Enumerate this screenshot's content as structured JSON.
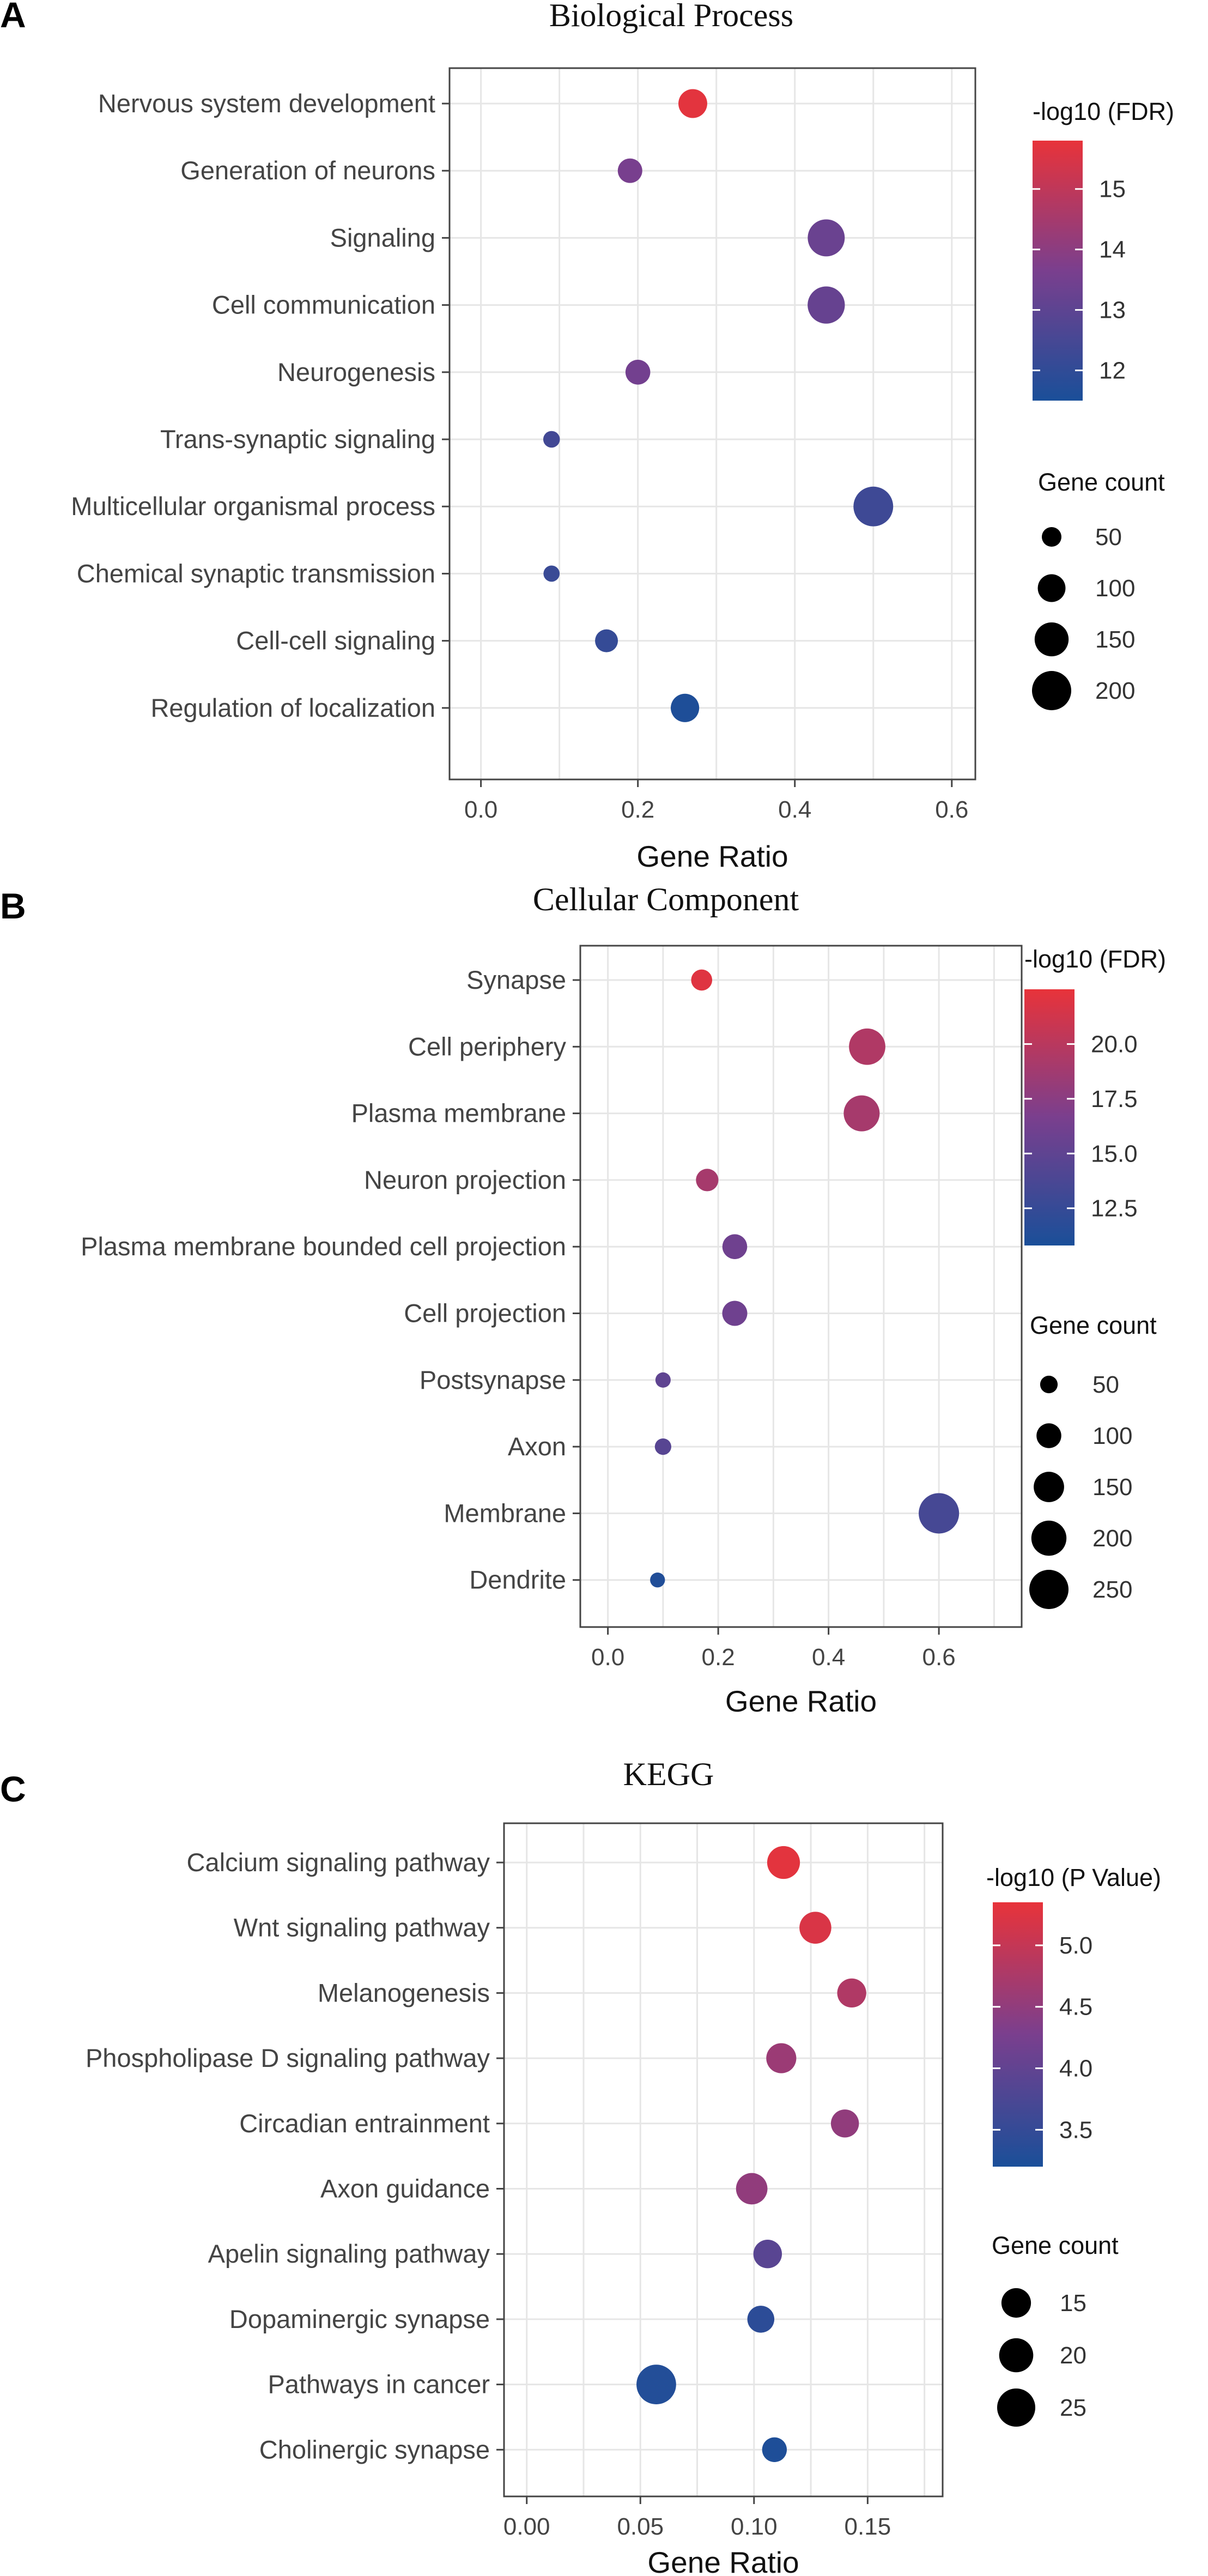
{
  "chart_data": [
    {
      "panel": "A",
      "type": "scatter",
      "title": "Biological Process",
      "xlabel": "Gene Ratio",
      "ylabel": "",
      "xlim": [
        -0.04,
        0.63
      ],
      "xticks": [
        0.0,
        0.2,
        0.4,
        0.6
      ],
      "xtick_labels": [
        "0.0",
        "0.2",
        "0.4",
        "0.6"
      ],
      "grid": true,
      "color_metric": "-log10 (FDR)",
      "color_range": [
        11.5,
        15.8
      ],
      "color_ticks": [
        12,
        13,
        14,
        15
      ],
      "color_tick_labels": [
        "12",
        "13",
        "14",
        "15"
      ],
      "size_metric": "Gene count",
      "size_legend": [
        50,
        100,
        150,
        200
      ],
      "size_legend_labels": [
        "50",
        "100",
        "150",
        "200"
      ],
      "points": [
        {
          "term": "Nervous system development",
          "x": 0.27,
          "color": 15.7,
          "size": 108
        },
        {
          "term": "Generation of neurons",
          "x": 0.19,
          "color": 13.6,
          "size": 78
        },
        {
          "term": "Signaling",
          "x": 0.44,
          "color": 13.3,
          "size": 178
        },
        {
          "term": "Cell communication",
          "x": 0.44,
          "color": 13.2,
          "size": 180
        },
        {
          "term": "Neurogenesis",
          "x": 0.2,
          "color": 13.5,
          "size": 80
        },
        {
          "term": "Trans-synaptic signaling",
          "x": 0.09,
          "color": 12.4,
          "size": 36
        },
        {
          "term": "Multicellular organismal process",
          "x": 0.5,
          "color": 12.3,
          "size": 205
        },
        {
          "term": "Chemical synaptic transmission",
          "x": 0.09,
          "color": 12.2,
          "size": 34
        },
        {
          "term": "Cell-cell signaling",
          "x": 0.16,
          "color": 12.1,
          "size": 68
        },
        {
          "term": "Regulation of localization",
          "x": 0.26,
          "color": 11.6,
          "size": 105
        }
      ]
    },
    {
      "panel": "B",
      "type": "scatter",
      "title": "Cellular Component",
      "xlabel": "Gene Ratio",
      "ylabel": "",
      "xlim": [
        -0.05,
        0.75
      ],
      "xticks": [
        0.0,
        0.2,
        0.4,
        0.6
      ],
      "xtick_labels": [
        "0.0",
        "0.2",
        "0.4",
        "0.6"
      ],
      "grid": true,
      "color_metric": "-log10 (FDR)",
      "color_range": [
        10.8,
        22.5
      ],
      "color_ticks": [
        12.5,
        15.0,
        17.5,
        20.0
      ],
      "color_tick_labels": [
        "12.5",
        "15.0",
        "17.5",
        "20.0"
      ],
      "size_metric": "Gene count",
      "size_legend": [
        50,
        100,
        150,
        200,
        250
      ],
      "size_legend_labels": [
        "50",
        "100",
        "150",
        "200",
        "250"
      ],
      "points": [
        {
          "term": "Synapse",
          "x": 0.17,
          "color": 22.0,
          "size": 72
        },
        {
          "term": "Cell periphery",
          "x": 0.47,
          "color": 19.5,
          "size": 215
        },
        {
          "term": "Plasma membrane",
          "x": 0.46,
          "color": 19.0,
          "size": 210
        },
        {
          "term": "Neuron projection",
          "x": 0.18,
          "color": 19.0,
          "size": 82
        },
        {
          "term": "Plasma membrane bounded cell projection",
          "x": 0.23,
          "color": 16.0,
          "size": 100
        },
        {
          "term": "Cell projection",
          "x": 0.23,
          "color": 16.0,
          "size": 102
        },
        {
          "term": "Postsynapse",
          "x": 0.1,
          "color": 15.0,
          "size": 38
        },
        {
          "term": "Axon",
          "x": 0.1,
          "color": 14.5,
          "size": 44
        },
        {
          "term": "Membrane",
          "x": 0.6,
          "color": 13.5,
          "size": 265
        },
        {
          "term": "Dendrite",
          "x": 0.09,
          "color": 11.2,
          "size": 36
        }
      ]
    },
    {
      "panel": "C",
      "type": "scatter",
      "title": "KEGG",
      "xlabel": "Gene Ratio",
      "ylabel": "",
      "xlim": [
        -0.01,
        0.183
      ],
      "xticks": [
        0.0,
        0.05,
        0.1,
        0.15
      ],
      "xtick_labels": [
        "0.00",
        "0.05",
        "0.10",
        "0.15"
      ],
      "grid": true,
      "color_metric": "-log10 (P Value)",
      "color_range": [
        3.2,
        5.35
      ],
      "color_ticks": [
        3.5,
        4.0,
        4.5,
        5.0
      ],
      "color_tick_labels": [
        "3.5",
        "4.0",
        "4.5",
        "5.0"
      ],
      "size_metric": "Gene count",
      "size_legend": [
        15,
        20,
        25
      ],
      "size_legend_labels": [
        "15",
        "20",
        "25"
      ],
      "points": [
        {
          "term": "Calcium signaling pathway",
          "x": 0.113,
          "color": 5.3,
          "size": 18.5
        },
        {
          "term": "Wnt signaling pathway",
          "x": 0.127,
          "color": 5.2,
          "size": 17.5
        },
        {
          "term": "Melanogenesis",
          "x": 0.143,
          "color": 4.8,
          "size": 14.5
        },
        {
          "term": "Phospholipase D signaling pathway",
          "x": 0.112,
          "color": 4.6,
          "size": 15.5
        },
        {
          "term": "Circadian entrainment",
          "x": 0.14,
          "color": 4.5,
          "size": 13.5
        },
        {
          "term": "Axon guidance",
          "x": 0.099,
          "color": 4.5,
          "size": 17.0
        },
        {
          "term": "Apelin signaling pathway",
          "x": 0.106,
          "color": 3.9,
          "size": 14.0
        },
        {
          "term": "Dopaminergic synapse",
          "x": 0.103,
          "color": 3.4,
          "size": 12.5
        },
        {
          "term": "Pathways in cancer",
          "x": 0.057,
          "color": 3.3,
          "size": 27.0
        },
        {
          "term": "Cholinergic synapse",
          "x": 0.109,
          "color": 3.25,
          "size": 10.5
        }
      ]
    }
  ],
  "colors": {
    "low": "#1a4f99",
    "mid": "#7a3f8e",
    "high": "#e8333a",
    "panel_border": "#444444",
    "grid": "#e6e6e6",
    "size_key": "#000000"
  }
}
